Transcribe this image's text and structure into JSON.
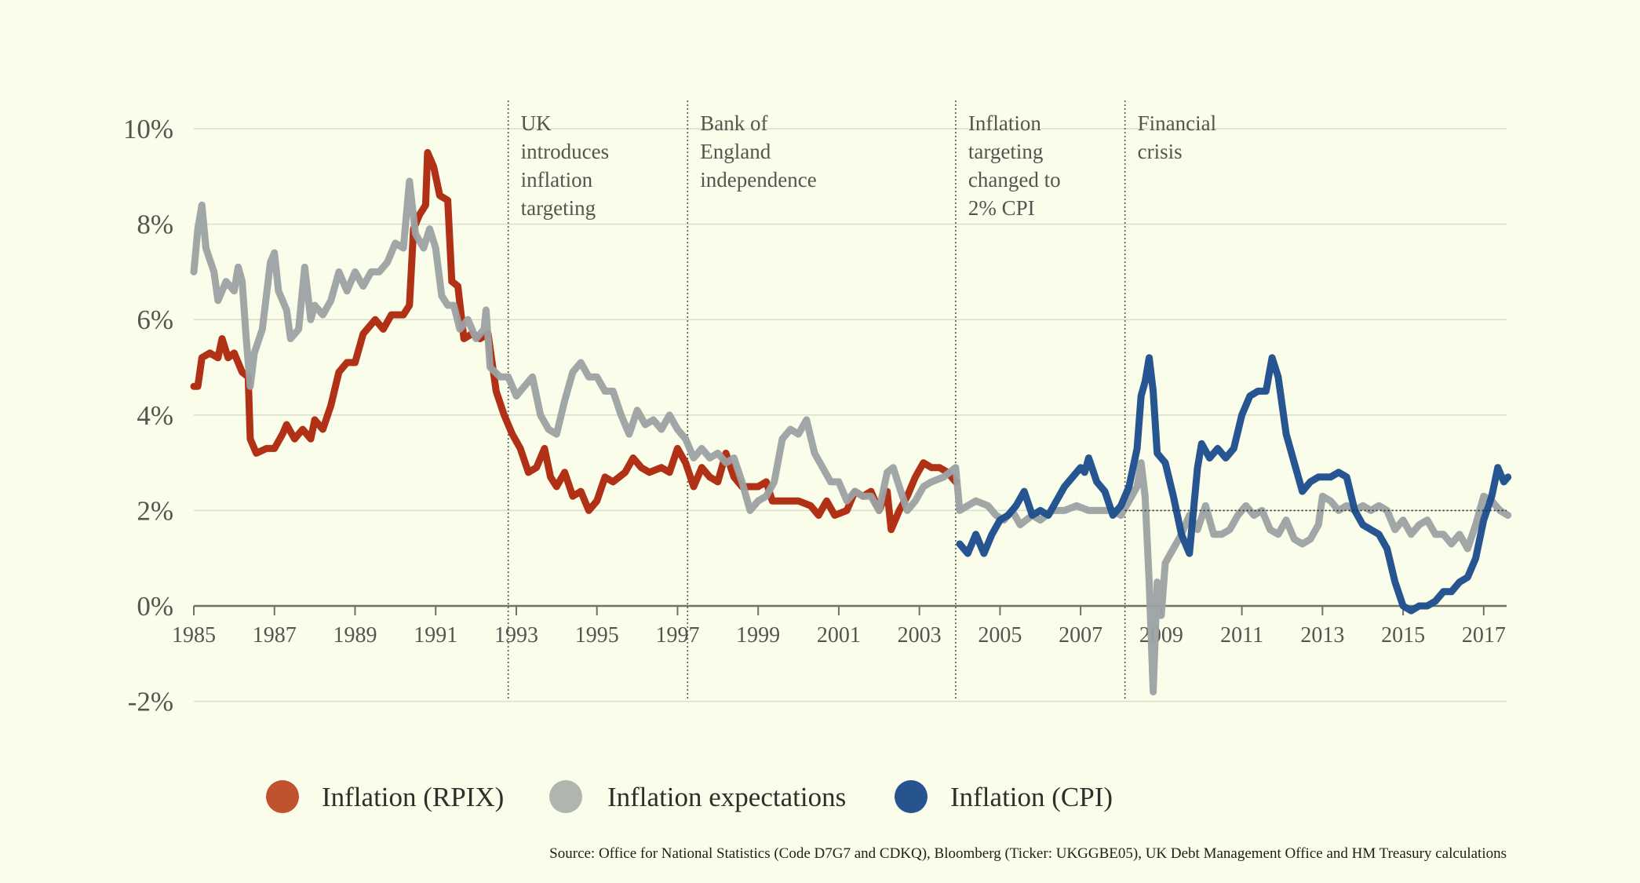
{
  "chart_data": {
    "type": "line",
    "title": "",
    "xlabel": "",
    "ylabel": "",
    "xlim": [
      1985,
      2017.7
    ],
    "ylim": [
      -2,
      10
    ],
    "y_ticks": [
      -2,
      0,
      2,
      4,
      6,
      8,
      10
    ],
    "y_tick_labels": [
      "-2%",
      "0%",
      "2%",
      "4%",
      "6%",
      "8%",
      "10%"
    ],
    "x_ticks": [
      1985,
      1987,
      1989,
      1991,
      1993,
      1995,
      1997,
      1999,
      2001,
      2003,
      2005,
      2007,
      2009,
      2011,
      2013,
      2015,
      2017
    ],
    "x_tick_labels": [
      "1985",
      "1987",
      "1989",
      "1991",
      "1993",
      "1995",
      "1997",
      "1999",
      "2001",
      "2003",
      "2005",
      "2007",
      "2009",
      "2011",
      "2013",
      "2015",
      "2017"
    ],
    "grid": "horizontal",
    "legend_placement": "bottom",
    "reference_line": {
      "y": 2,
      "from_x": 2008.1,
      "style": "dotted"
    },
    "annotations": [
      {
        "x": 1992.8,
        "lines": [
          "UK",
          "introduces",
          "inflation",
          "targeting"
        ]
      },
      {
        "x": 1997.25,
        "lines": [
          "Bank of",
          "England",
          "independence"
        ]
      },
      {
        "x": 2003.9,
        "lines": [
          "Inflation",
          "targeting",
          "changed to",
          "2% CPI"
        ]
      },
      {
        "x": 2008.1,
        "lines": [
          "Financial",
          "crisis"
        ]
      }
    ],
    "series": [
      {
        "name": "Inflation (RPIX)",
        "color": "#ae2a10",
        "legend_color": "#c0522e",
        "x": [
          1985.0,
          1985.1,
          1985.2,
          1985.4,
          1985.6,
          1985.7,
          1985.85,
          1986.0,
          1986.2,
          1986.35,
          1986.4,
          1986.55,
          1986.8,
          1987.0,
          1987.2,
          1987.3,
          1987.5,
          1987.7,
          1987.9,
          1988.0,
          1988.2,
          1988.4,
          1988.6,
          1988.8,
          1989.0,
          1989.2,
          1989.5,
          1989.7,
          1989.9,
          1990.2,
          1990.35,
          1990.45,
          1990.6,
          1990.75,
          1990.8,
          1990.95,
          1991.1,
          1991.3,
          1991.4,
          1991.55,
          1991.7,
          1991.9,
          1992.1,
          1992.3,
          1992.5,
          1992.7,
          1992.9,
          1993.1,
          1993.3,
          1993.5,
          1993.7,
          1993.85,
          1994.0,
          1994.2,
          1994.4,
          1994.6,
          1994.8,
          1995.0,
          1995.2,
          1995.4,
          1995.7,
          1995.9,
          1996.1,
          1996.3,
          1996.6,
          1996.8,
          1997.0,
          1997.2,
          1997.4,
          1997.6,
          1997.8,
          1998.0,
          1998.2,
          1998.4,
          1998.6,
          1999.0,
          1999.2,
          1999.35,
          1999.6,
          2000.0,
          2000.3,
          2000.5,
          2000.7,
          2000.9,
          2001.2,
          2001.4,
          2001.6,
          2001.8,
          2002.0,
          2002.2,
          2002.3,
          2002.5,
          2002.7,
          2002.9,
          2003.1,
          2003.3,
          2003.5,
          2003.7,
          2003.9
        ],
        "y": [
          4.6,
          4.6,
          5.2,
          5.3,
          5.2,
          5.6,
          5.2,
          5.3,
          4.9,
          4.8,
          3.5,
          3.2,
          3.3,
          3.3,
          3.6,
          3.8,
          3.5,
          3.7,
          3.5,
          3.9,
          3.7,
          4.2,
          4.9,
          5.1,
          5.1,
          5.7,
          6.0,
          5.8,
          6.1,
          6.1,
          6.3,
          7.9,
          8.2,
          8.4,
          9.5,
          9.2,
          8.6,
          8.5,
          6.8,
          6.7,
          5.6,
          5.7,
          5.6,
          5.7,
          4.5,
          4.0,
          3.6,
          3.3,
          2.8,
          2.9,
          3.3,
          2.7,
          2.5,
          2.8,
          2.3,
          2.4,
          2.0,
          2.2,
          2.7,
          2.6,
          2.8,
          3.1,
          2.9,
          2.8,
          2.9,
          2.8,
          3.3,
          3.0,
          2.5,
          2.9,
          2.7,
          2.6,
          3.2,
          2.7,
          2.5,
          2.5,
          2.6,
          2.2,
          2.2,
          2.2,
          2.1,
          1.9,
          2.2,
          1.9,
          2.0,
          2.4,
          2.3,
          2.4,
          2.0,
          2.4,
          1.6,
          2.0,
          2.3,
          2.7,
          3.0,
          2.9,
          2.9,
          2.8,
          2.6
        ]
      },
      {
        "name": "Inflation expectations",
        "color": "#9ca1a3",
        "legend_color": "#b1b5b0",
        "x": [
          1985.0,
          1985.1,
          1985.2,
          1985.3,
          1985.5,
          1985.6,
          1985.8,
          1986.0,
          1986.1,
          1986.2,
          1986.3,
          1986.4,
          1986.5,
          1986.7,
          1986.9,
          1987.0,
          1987.1,
          1987.3,
          1987.4,
          1987.6,
          1987.75,
          1987.9,
          1988.0,
          1988.2,
          1988.4,
          1988.6,
          1988.8,
          1989.0,
          1989.2,
          1989.4,
          1989.6,
          1989.8,
          1990.0,
          1990.2,
          1990.35,
          1990.5,
          1990.7,
          1990.85,
          1991.0,
          1991.15,
          1991.3,
          1991.45,
          1991.6,
          1991.8,
          1992.0,
          1992.2,
          1992.25,
          1992.35,
          1992.6,
          1992.8,
          1993.0,
          1993.2,
          1993.4,
          1993.6,
          1993.8,
          1994.0,
          1994.2,
          1994.4,
          1994.6,
          1994.8,
          1995.0,
          1995.2,
          1995.4,
          1995.6,
          1995.8,
          1996.0,
          1996.2,
          1996.4,
          1996.6,
          1996.8,
          1997.0,
          1997.2,
          1997.4,
          1997.6,
          1997.8,
          1998.0,
          1998.2,
          1998.4,
          1998.6,
          1998.8,
          1999.0,
          1999.2,
          1999.4,
          1999.6,
          1999.8,
          2000.0,
          2000.2,
          2000.4,
          2000.6,
          2000.8,
          2001.0,
          2001.2,
          2001.4,
          2001.6,
          2001.8,
          2002.0,
          2002.2,
          2002.35,
          2002.5,
          2002.7,
          2002.9,
          2003.1,
          2003.3,
          2003.6,
          2003.9,
          2004.0,
          2004.2,
          2004.4,
          2004.7,
          2004.9,
          2005.1,
          2005.3,
          2005.5,
          2005.8,
          2006.0,
          2006.3,
          2006.6,
          2006.9,
          2007.2,
          2007.5,
          2007.8,
          2008.0,
          2008.2,
          2008.4,
          2008.5,
          2008.6,
          2008.7,
          2008.8,
          2008.9,
          2009.0,
          2009.1,
          2009.3,
          2009.5,
          2009.7,
          2009.9,
          2010.1,
          2010.3,
          2010.5,
          2010.7,
          2010.9,
          2011.1,
          2011.3,
          2011.5,
          2011.7,
          2011.9,
          2012.1,
          2012.3,
          2012.5,
          2012.7,
          2012.9,
          2013.0,
          2013.2,
          2013.4,
          2013.6,
          2013.8,
          2014.0,
          2014.2,
          2014.4,
          2014.6,
          2014.8,
          2015.0,
          2015.2,
          2015.4,
          2015.6,
          2015.8,
          2016.0,
          2016.2,
          2016.4,
          2016.6,
          2016.8,
          2017.0,
          2017.2,
          2017.4,
          2017.6
        ],
        "y": [
          7.0,
          7.9,
          8.4,
          7.5,
          7.0,
          6.4,
          6.8,
          6.6,
          7.1,
          6.8,
          5.6,
          4.6,
          5.3,
          5.8,
          7.2,
          7.4,
          6.6,
          6.2,
          5.6,
          5.8,
          7.1,
          6.0,
          6.3,
          6.1,
          6.4,
          7.0,
          6.6,
          7.0,
          6.7,
          7.0,
          7.0,
          7.2,
          7.6,
          7.5,
          8.9,
          7.8,
          7.5,
          7.9,
          7.5,
          6.5,
          6.3,
          6.3,
          5.8,
          6.0,
          5.6,
          5.8,
          6.2,
          5.0,
          4.8,
          4.8,
          4.4,
          4.6,
          4.8,
          4.0,
          3.7,
          3.6,
          4.3,
          4.9,
          5.1,
          4.8,
          4.8,
          4.5,
          4.5,
          4.0,
          3.6,
          4.1,
          3.8,
          3.9,
          3.7,
          4.0,
          3.7,
          3.5,
          3.1,
          3.3,
          3.1,
          3.2,
          3.0,
          3.1,
          2.6,
          2.0,
          2.2,
          2.3,
          2.6,
          3.5,
          3.7,
          3.6,
          3.9,
          3.2,
          2.9,
          2.6,
          2.6,
          2.2,
          2.4,
          2.3,
          2.3,
          2.0,
          2.8,
          2.9,
          2.5,
          2.0,
          2.2,
          2.5,
          2.6,
          2.7,
          2.9,
          2.0,
          2.1,
          2.2,
          2.1,
          1.9,
          1.8,
          2.0,
          1.7,
          1.9,
          1.8,
          2.0,
          2.0,
          2.1,
          2.0,
          2.0,
          2.0,
          1.9,
          2.2,
          2.5,
          3.0,
          2.3,
          0.5,
          -1.8,
          0.5,
          -0.2,
          0.9,
          1.2,
          1.5,
          1.9,
          1.6,
          2.1,
          1.5,
          1.5,
          1.6,
          1.9,
          2.1,
          1.9,
          2.0,
          1.6,
          1.5,
          1.8,
          1.4,
          1.3,
          1.4,
          1.7,
          2.3,
          2.2,
          2.0,
          2.1,
          2.0,
          2.1,
          2.0,
          2.1,
          2.0,
          1.6,
          1.8,
          1.5,
          1.7,
          1.8,
          1.5,
          1.5,
          1.3,
          1.5,
          1.2,
          1.7,
          2.3,
          2.2,
          2.0,
          1.9
        ]
      },
      {
        "name": "Inflation (CPI)",
        "color": "#1f4f8e",
        "legend_color": "#25548f",
        "x": [
          2004.0,
          2004.2,
          2004.4,
          2004.6,
          2004.8,
          2005.0,
          2005.2,
          2005.4,
          2005.6,
          2005.8,
          2006.0,
          2006.2,
          2006.4,
          2006.6,
          2006.8,
          2007.0,
          2007.1,
          2007.2,
          2007.4,
          2007.6,
          2007.8,
          2008.0,
          2008.2,
          2008.4,
          2008.5,
          2008.6,
          2008.7,
          2008.8,
          2008.9,
          2009.1,
          2009.3,
          2009.5,
          2009.7,
          2009.9,
          2010.0,
          2010.2,
          2010.4,
          2010.6,
          2010.8,
          2011.0,
          2011.2,
          2011.4,
          2011.6,
          2011.75,
          2011.9,
          2012.1,
          2012.3,
          2012.5,
          2012.7,
          2012.9,
          2013.2,
          2013.4,
          2013.6,
          2013.8,
          2014.0,
          2014.2,
          2014.4,
          2014.6,
          2014.8,
          2015.0,
          2015.2,
          2015.4,
          2015.6,
          2015.8,
          2016.0,
          2016.2,
          2016.4,
          2016.6,
          2016.8,
          2017.0,
          2017.2,
          2017.35,
          2017.5,
          2017.6
        ],
        "y": [
          1.3,
          1.1,
          1.5,
          1.1,
          1.5,
          1.8,
          1.9,
          2.1,
          2.4,
          1.9,
          2.0,
          1.9,
          2.2,
          2.5,
          2.7,
          2.9,
          2.8,
          3.1,
          2.6,
          2.4,
          1.9,
          2.1,
          2.5,
          3.3,
          4.4,
          4.7,
          5.2,
          4.5,
          3.2,
          3.0,
          2.3,
          1.5,
          1.1,
          2.9,
          3.4,
          3.1,
          3.3,
          3.1,
          3.3,
          4.0,
          4.4,
          4.5,
          4.5,
          5.2,
          4.8,
          3.6,
          3.0,
          2.4,
          2.6,
          2.7,
          2.7,
          2.8,
          2.7,
          2.0,
          1.7,
          1.6,
          1.5,
          1.2,
          0.5,
          0.0,
          -0.1,
          0.0,
          0.0,
          0.1,
          0.3,
          0.3,
          0.5,
          0.6,
          1.0,
          1.8,
          2.3,
          2.9,
          2.6,
          2.7
        ]
      }
    ]
  },
  "legend": [
    {
      "label": "Inflation (RPIX)"
    },
    {
      "label": "Inflation expectations"
    },
    {
      "label": "Inflation (CPI)"
    }
  ],
  "source": "Source: Office for National Statistics (Code D7G7 and CDKQ), Bloomberg (Ticker: UKGGBE05), UK Debt Management Office and HM Treasury calculations"
}
